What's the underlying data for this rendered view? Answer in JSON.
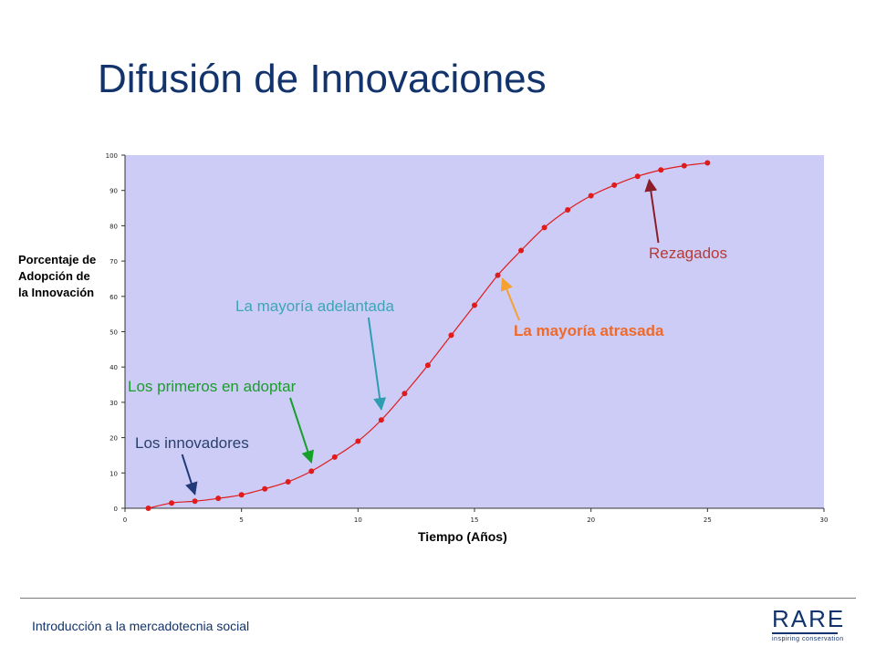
{
  "slide": {
    "title": "Difusión de Innovaciones",
    "footer": "Introducción a la mercadotecnia social",
    "logo": {
      "word": "RARE",
      "tagline": "inspiring conservation"
    }
  },
  "chart_data": {
    "type": "scatter",
    "title": "",
    "xlabel": "Tiempo (Años)",
    "ylabel_lines": [
      "Porcentaje de",
      "Adopción de",
      "la Innovación"
    ],
    "xlim": [
      0,
      30
    ],
    "ylim": [
      0,
      100
    ],
    "x_ticks": [
      0,
      5,
      10,
      15,
      20,
      25,
      30
    ],
    "y_ticks": [
      0,
      10,
      20,
      30,
      40,
      50,
      60,
      70,
      80,
      90,
      100
    ],
    "grid": false,
    "plot_background": "#ccccf7",
    "series": [
      {
        "color": "#e01b1b",
        "x": [
          1,
          2,
          3,
          4,
          5,
          6,
          7,
          8,
          9,
          10,
          11,
          12,
          13,
          14,
          15,
          16,
          17,
          18,
          19,
          20,
          21,
          22,
          23,
          24,
          25
        ],
        "y": [
          0,
          1.5,
          2,
          2.8,
          3.8,
          5.5,
          7.5,
          10.5,
          14.5,
          19,
          25,
          32.5,
          40.5,
          49,
          57.5,
          66,
          73,
          79.5,
          84.5,
          88.5,
          91.5,
          94,
          95.8,
          97,
          97.8
        ]
      }
    ],
    "annotations": [
      {
        "text": "Los innovadores",
        "color": "#2a3f6b",
        "arrow_color": "#203a78",
        "bold": false,
        "target": [
          3,
          4
        ]
      },
      {
        "text": "Los primeros en adoptar",
        "color": "#1c9c2c",
        "arrow_color": "#15a02a",
        "bold": false,
        "target": [
          8,
          13
        ]
      },
      {
        "text": "La mayoría adelantada",
        "color": "#3ca6b6",
        "arrow_color": "#2f9db0",
        "bold": false,
        "target": [
          11,
          28
        ]
      },
      {
        "text": "La mayoría atrasada",
        "color": "#ef6a2a",
        "arrow_color": "#f5a030",
        "bold": true,
        "target": [
          16.2,
          65
        ]
      },
      {
        "text": "Rezagados",
        "color": "#b53a38",
        "arrow_color": "#8a1e2a",
        "bold": false,
        "target": [
          22.5,
          93
        ]
      }
    ]
  }
}
